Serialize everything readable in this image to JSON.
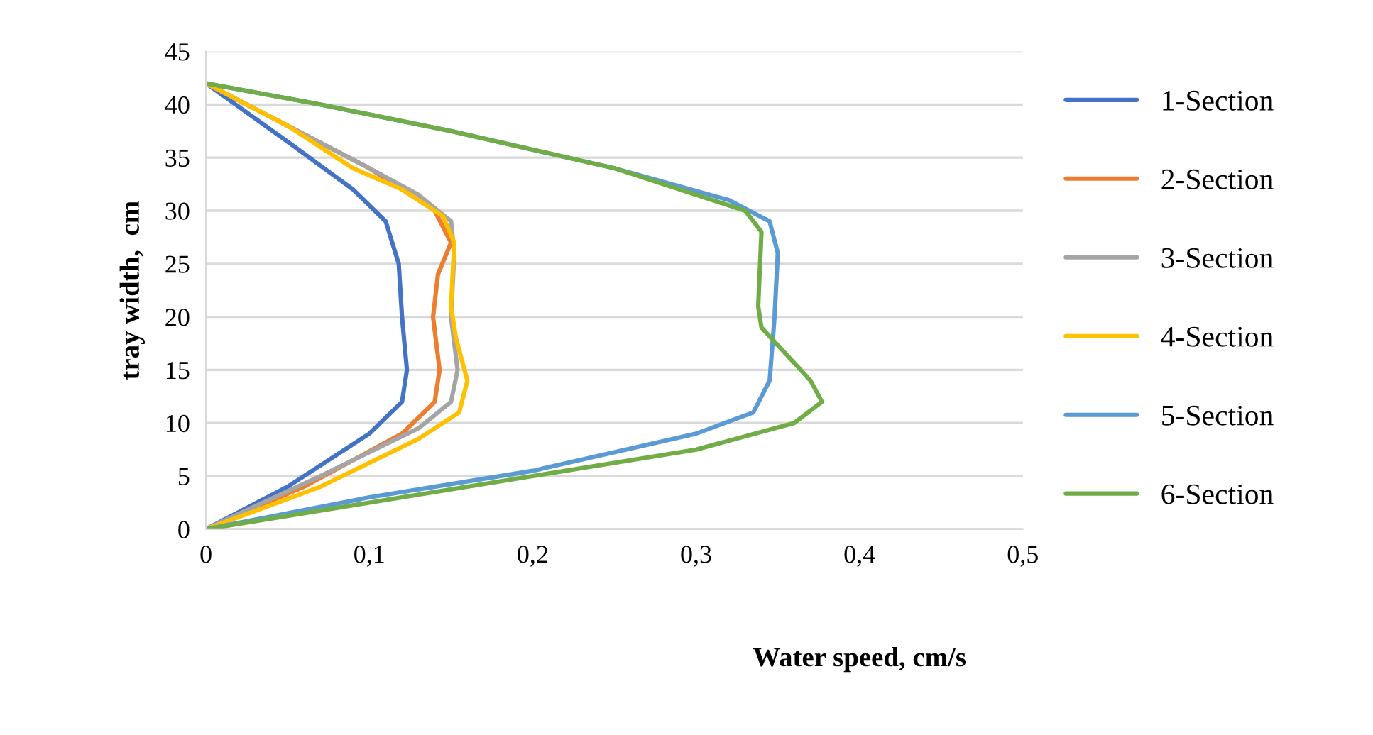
{
  "chart_data": {
    "type": "line",
    "xlabel": "Water speed, cm/s",
    "ylabel": "tray width,  cm",
    "xlim": [
      0,
      0.5
    ],
    "ylim": [
      0,
      45
    ],
    "xticks": [
      0,
      {
        "value": 0.1,
        "label": "0,1"
      },
      {
        "value": 0.2,
        "label": "0,2"
      },
      {
        "value": 0.3,
        "label": "0,3"
      },
      {
        "value": 0.4,
        "label": "0,4"
      },
      {
        "value": 0.5,
        "label": "0,5"
      }
    ],
    "yticks": [
      0,
      5,
      10,
      15,
      20,
      25,
      30,
      35,
      40,
      45
    ],
    "grid": "y",
    "legend": "right",
    "marker": "none",
    "line_style": "solid",
    "series": [
      {
        "name": "1-Section",
        "color": "#4472c4",
        "x": [
          0,
          0.05,
          0.1,
          0.12,
          0.123,
          0.12,
          0.118,
          0.11,
          0.09,
          0.05,
          0
        ],
        "values": [
          0,
          4,
          9,
          12,
          15,
          20,
          25,
          29,
          32,
          36.5,
          42
        ]
      },
      {
        "name": "2-Section",
        "color": "#ed7d31",
        "x": [
          0,
          0.06,
          0.12,
          0.14,
          0.143,
          0.139,
          0.142,
          0.15,
          0.14,
          0.1,
          0.05,
          0
        ],
        "values": [
          0,
          4,
          9,
          12,
          15,
          20,
          24,
          27,
          30,
          34,
          38,
          42
        ]
      },
      {
        "name": "3-Section",
        "color": "#a5a5a5",
        "x": [
          0,
          0.07,
          0.13,
          0.15,
          0.154,
          0.15,
          0.152,
          0.15,
          0.13,
          0.1,
          0.05,
          0
        ],
        "values": [
          0,
          5,
          9.5,
          12,
          15,
          20,
          26,
          29,
          31.5,
          34,
          38,
          42
        ]
      },
      {
        "name": "4-Section",
        "color": "#ffc000",
        "x": [
          0,
          0.07,
          0.13,
          0.155,
          0.16,
          0.153,
          0.15,
          0.152,
          0.145,
          0.12,
          0.09,
          0.05,
          0
        ],
        "values": [
          0,
          4,
          8.5,
          11,
          14,
          18,
          21,
          27,
          29.5,
          32,
          34,
          38,
          42
        ]
      },
      {
        "name": "5-Section",
        "color": "#5b9bd5",
        "x": [
          0,
          0.1,
          0.2,
          0.3,
          0.335,
          0.345,
          0.348,
          0.35,
          0.345,
          0.32,
          0.25,
          0.15,
          0.07,
          0
        ],
        "values": [
          0,
          3,
          5.5,
          9,
          11,
          14,
          20,
          26,
          29,
          31,
          34,
          37.5,
          40,
          42
        ]
      },
      {
        "name": "6-Section",
        "color": "#70ad47",
        "x": [
          0,
          0.1,
          0.2,
          0.3,
          0.36,
          0.377,
          0.37,
          0.34,
          0.338,
          0.34,
          0.33,
          0.25,
          0.15,
          0.07,
          0
        ],
        "values": [
          0,
          2.5,
          5,
          7.5,
          10,
          12,
          14,
          19,
          21,
          28,
          30,
          34,
          37.5,
          40,
          42
        ]
      }
    ]
  }
}
